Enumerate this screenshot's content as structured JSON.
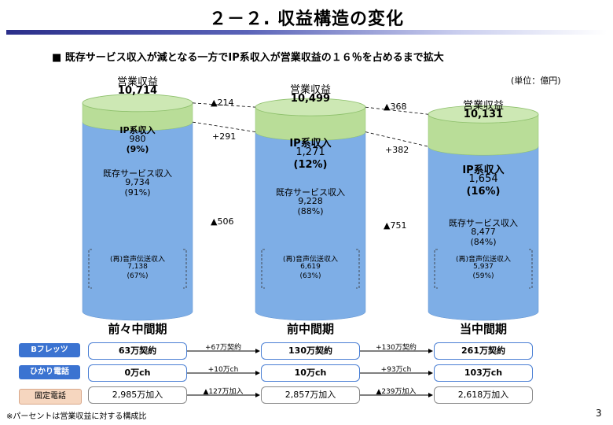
{
  "title": "２－２. 収益構造の変化",
  "subtitle": "■ 既存サービス収入が減となる一方でIP系収入が営業収益の１６％を占めるまで拡大",
  "unit_label": "(単位：億円)",
  "footnote": "※パーセントは営業収益に対する構成比",
  "page_number": "3",
  "colors": {
    "ip_top": "#cde8b4",
    "ip_body": "#b9dd98",
    "existing_top": "#9cc2ef",
    "existing_body": "#7eaee6",
    "title_bar": "#2b2f8a"
  },
  "chart_data": {
    "type": "bar",
    "stacked": true,
    "categories": [
      "前々中間期",
      "前中間期",
      "当中間期"
    ],
    "series": [
      {
        "name": "既存サービス収入",
        "values": [
          9734,
          9228,
          8477
        ],
        "percent": [
          "(91%)",
          "(88%)",
          "(84%)"
        ]
      },
      {
        "name": "IP系収入",
        "values": [
          980,
          1271,
          1654
        ],
        "percent": [
          "(9%)",
          "(12%)",
          "(16%)"
        ]
      }
    ],
    "totals": [
      10714,
      10499,
      10131
    ],
    "sub_series": {
      "name": "(再)音声伝送収入",
      "values": [
        7138,
        6619,
        5937
      ],
      "percent": [
        "(67%)",
        "(63%)",
        "(59%)"
      ]
    },
    "total_label": "営業収益",
    "changes": {
      "total": [
        "▲214",
        "▲368"
      ],
      "ip": [
        "+291",
        "+382"
      ],
      "existing": [
        "▲506",
        "▲751"
      ]
    }
  },
  "bars": [
    {
      "total_label": "営業収益",
      "total": "10,714",
      "ip_label": "IP系収入",
      "ip_value": "980",
      "ip_pct": "(9%)",
      "ex_label": "既存サービス収入",
      "ex_value": "9,734",
      "ex_pct": "(91%)",
      "voice_label": "(再)音声伝送収入",
      "voice_value": "7,138",
      "voice_pct": "(67%)",
      "period": "前々中間期"
    },
    {
      "total_label": "営業収益",
      "total": "10,499",
      "ip_label": "IP系収入",
      "ip_value": "1,271",
      "ip_pct": "(12%)",
      "ex_label": "既存サービス収入",
      "ex_value": "9,228",
      "ex_pct": "(88%)",
      "voice_label": "(再)音声伝送収入",
      "voice_value": "6,619",
      "voice_pct": "(63%)",
      "period": "前中間期"
    },
    {
      "total_label": "営業収益",
      "total": "10,131",
      "ip_label": "IP系収入",
      "ip_value": "1,654",
      "ip_pct": "(16%)",
      "ex_label": "既存サービス収入",
      "ex_value": "8,477",
      "ex_pct": "(84%)",
      "voice_label": "(再)音声伝送収入",
      "voice_value": "5,937",
      "voice_pct": "(59%)",
      "period": "当中間期"
    }
  ],
  "change_labels": {
    "total": [
      "▲214",
      "▲368"
    ],
    "ip": [
      "+291",
      "+382"
    ],
    "existing": [
      "▲506",
      "▲751"
    ]
  },
  "table": {
    "rows": [
      {
        "label": "Bフレッツ",
        "label_color": "#3b73d1",
        "values": [
          "63万契約",
          "130万契約",
          "261万契約"
        ],
        "diffs": [
          "+67万契約",
          "+130万契約"
        ]
      },
      {
        "label": "ひかり電話",
        "label_color": "#3b73d1",
        "values": [
          "0万ch",
          "10万ch",
          "103万ch"
        ],
        "diffs": [
          "+10万ch",
          "+93万ch"
        ]
      },
      {
        "label": "固定電話",
        "label_color": "#f6d6bf",
        "values": [
          "2,985万加入",
          "2,857万加入",
          "2,618万加入"
        ],
        "diffs": [
          "▲127万加入",
          "▲239万加入"
        ]
      }
    ]
  }
}
